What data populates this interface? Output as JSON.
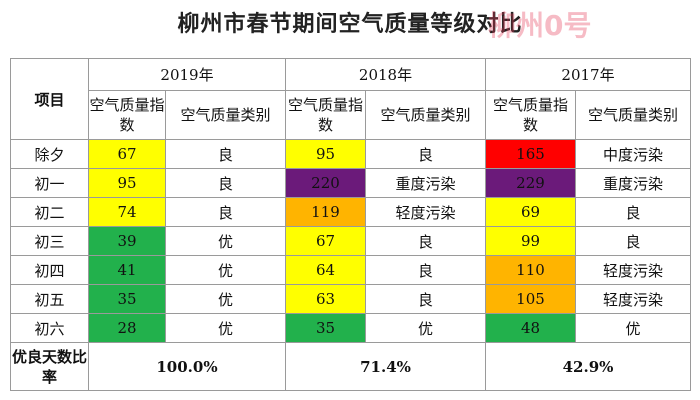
{
  "title": "柳州市春节期间空气质量等级对比",
  "watermark": "柳州0号",
  "table": {
    "item_header": "项目",
    "years": [
      "2019年",
      "2018年",
      "2017年"
    ],
    "sub_headers": [
      "空气质量指数",
      "空气质量类别"
    ],
    "rows": [
      {
        "day": "除夕",
        "cells": [
          {
            "aqi": "67",
            "color": "#ffff00",
            "level": "良"
          },
          {
            "aqi": "95",
            "color": "#ffff00",
            "level": "良"
          },
          {
            "aqi": "165",
            "color": "#ff0000",
            "level": "中度污染"
          }
        ]
      },
      {
        "day": "初一",
        "cells": [
          {
            "aqi": "95",
            "color": "#ffff00",
            "level": "良"
          },
          {
            "aqi": "220",
            "color": "#6b1a7a",
            "level": "重度污染"
          },
          {
            "aqi": "229",
            "color": "#6b1a7a",
            "level": "重度污染"
          }
        ]
      },
      {
        "day": "初二",
        "cells": [
          {
            "aqi": "74",
            "color": "#ffff00",
            "level": "良"
          },
          {
            "aqi": "119",
            "color": "#ffb400",
            "level": "轻度污染"
          },
          {
            "aqi": "69",
            "color": "#ffff00",
            "level": "良"
          }
        ]
      },
      {
        "day": "初三",
        "cells": [
          {
            "aqi": "39",
            "color": "#22b14c",
            "level": "优"
          },
          {
            "aqi": "67",
            "color": "#ffff00",
            "level": "良"
          },
          {
            "aqi": "99",
            "color": "#ffff00",
            "level": "良"
          }
        ]
      },
      {
        "day": "初四",
        "cells": [
          {
            "aqi": "41",
            "color": "#22b14c",
            "level": "优"
          },
          {
            "aqi": "64",
            "color": "#ffff00",
            "level": "良"
          },
          {
            "aqi": "110",
            "color": "#ffb400",
            "level": "轻度污染"
          }
        ]
      },
      {
        "day": "初五",
        "cells": [
          {
            "aqi": "35",
            "color": "#22b14c",
            "level": "优"
          },
          {
            "aqi": "63",
            "color": "#ffff00",
            "level": "良"
          },
          {
            "aqi": "105",
            "color": "#ffb400",
            "level": "轻度污染"
          }
        ]
      },
      {
        "day": "初六",
        "cells": [
          {
            "aqi": "28",
            "color": "#22b14c",
            "level": "优"
          },
          {
            "aqi": "35",
            "color": "#22b14c",
            "level": "优"
          },
          {
            "aqi": "48",
            "color": "#22b14c",
            "level": "优"
          }
        ]
      }
    ],
    "footer_label": "优良天数比率",
    "footer_values": [
      "100.0%",
      "71.4%",
      "42.9%"
    ]
  }
}
